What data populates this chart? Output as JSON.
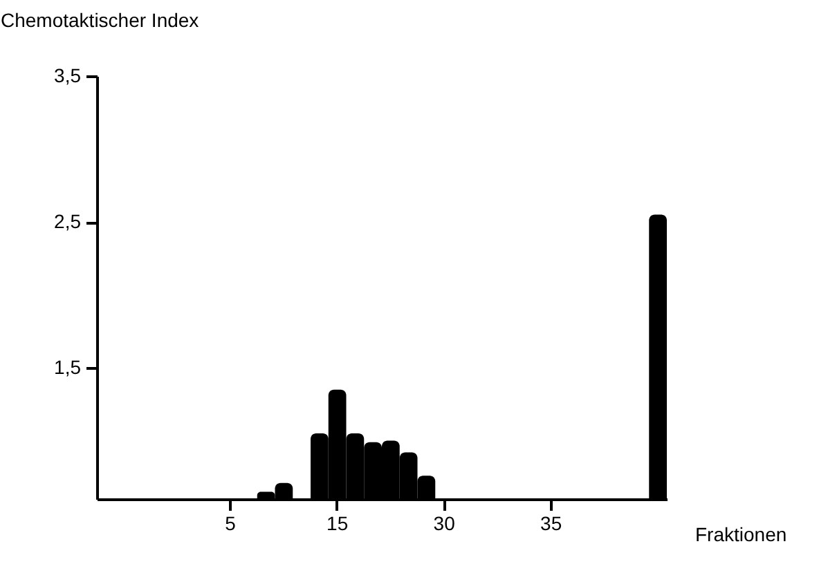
{
  "chart_data": {
    "type": "bar",
    "xlabel": "Fraktionen",
    "ylabel": "Chemotaktischer Index",
    "categories": [
      null,
      null,
      null,
      null,
      null,
      null,
      null,
      "5",
      null,
      null,
      null,
      null,
      null,
      "15",
      null,
      null,
      null,
      null,
      null,
      "30",
      null,
      null,
      null,
      null,
      null,
      "35",
      null,
      null,
      null,
      null,
      null,
      null
    ],
    "values": [
      null,
      null,
      null,
      null,
      null,
      null,
      null,
      null,
      null,
      0.65,
      0.71,
      null,
      1.05,
      1.35,
      1.05,
      0.99,
      1.0,
      0.92,
      0.76,
      null,
      null,
      null,
      null,
      null,
      null,
      null,
      null,
      null,
      null,
      null,
      null,
      2.55
    ],
    "color": "#000000",
    "ylim": [
      0.6,
      3.5
    ],
    "yticks": [
      {
        "value": 1.5,
        "label": "1,5"
      },
      {
        "value": 2.5,
        "label": "2,5"
      },
      {
        "value": 3.5,
        "label": "3,5"
      }
    ],
    "grid": false
  }
}
